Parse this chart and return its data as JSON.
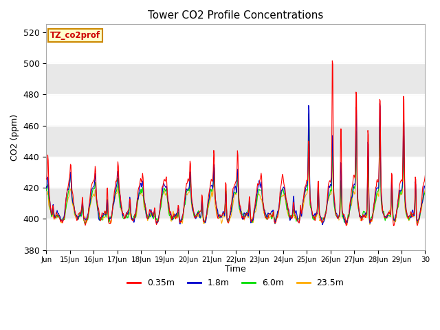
{
  "title": "Tower CO2 Profile Concentrations",
  "xlabel": "Time",
  "ylabel": "CO2 (ppm)",
  "ylim": [
    380,
    525
  ],
  "yticks": [
    380,
    400,
    420,
    440,
    460,
    480,
    500,
    520
  ],
  "colors": {
    "0.35m": "#ff0000",
    "1.8m": "#0000cc",
    "6.0m": "#00dd00",
    "23.5m": "#ffaa00"
  },
  "legend_label": "TZ_co2prof",
  "legend_box_color": "#ffffcc",
  "legend_box_edge": "#cc8800",
  "legend_text_color": "#cc0000",
  "bg_band_color": "#e8e8e8",
  "n_days": 16,
  "pts_per_day": 48,
  "x_tick_labels": [
    "Jun",
    "15Jun",
    "16Jun",
    "17Jun",
    "18Jun",
    "19Jun",
    "20Jun",
    "21Jun",
    "22Jun",
    "23Jun",
    "24Jun",
    "25Jun",
    "26Jun",
    "27Jun",
    "28Jun",
    "29Jun",
    "30"
  ],
  "line_width": 0.8,
  "figsize": [
    6.4,
    4.8
  ],
  "dpi": 100
}
